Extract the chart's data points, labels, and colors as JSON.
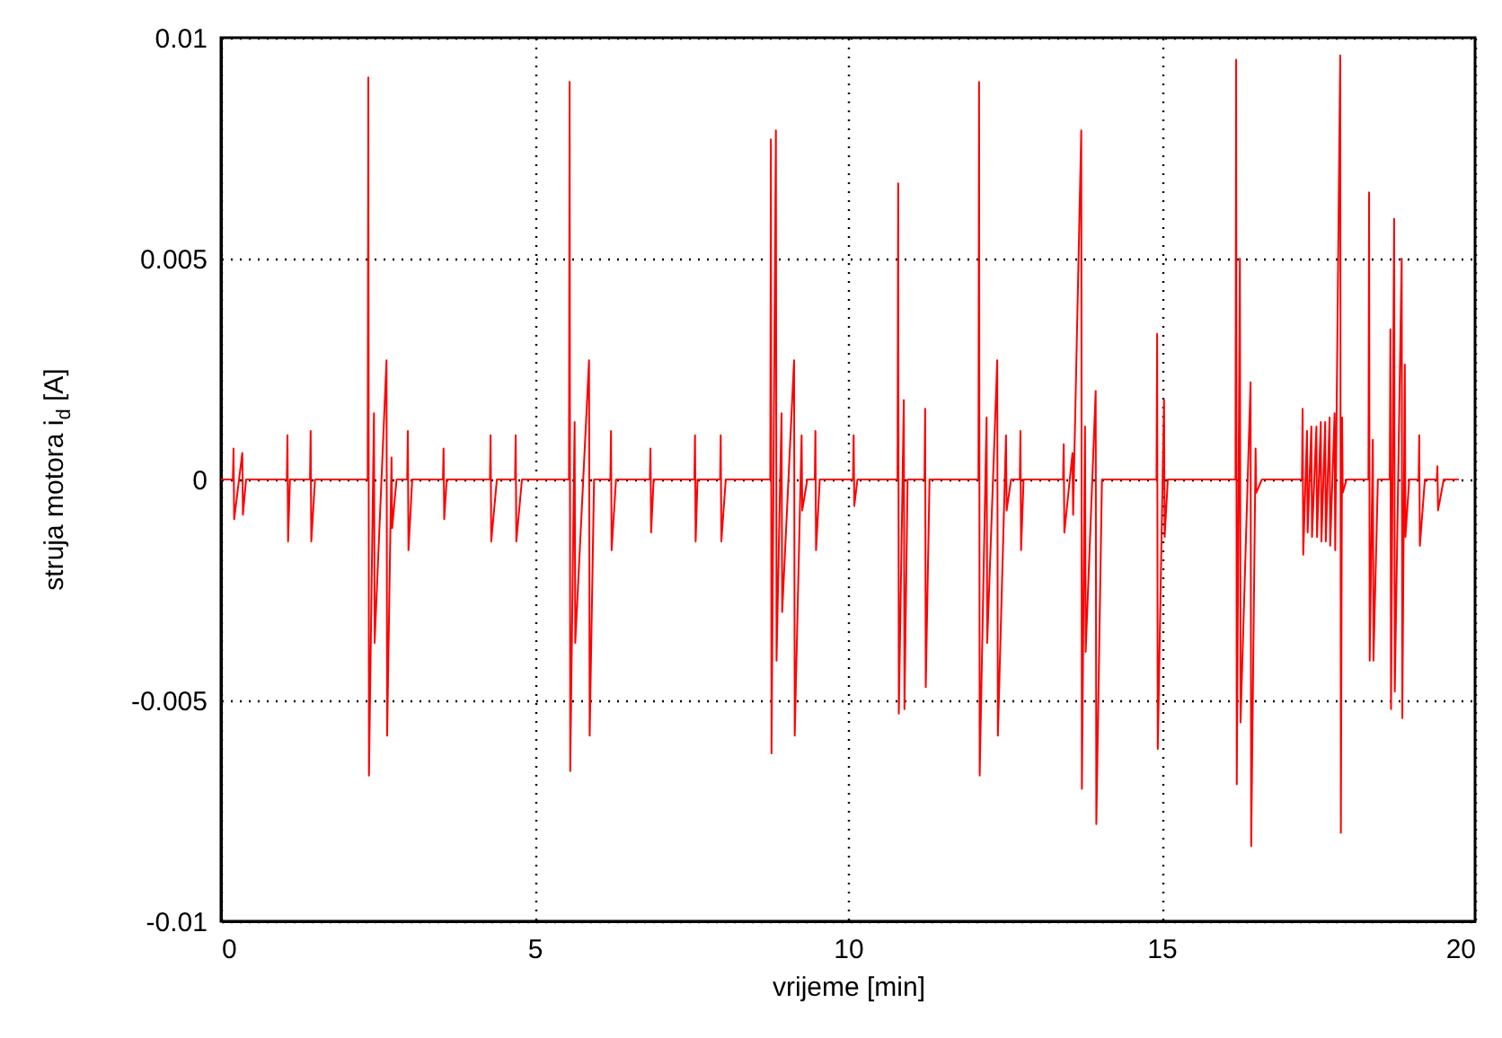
{
  "chart_data": {
    "type": "line",
    "xlabel": "vrijeme [min]",
    "ylabel": "struja motora i$_{d}$ [A]",
    "xlim": [
      0,
      20
    ],
    "xticks": [
      0,
      5,
      10,
      15,
      20
    ],
    "ylim": [
      -0.01,
      0.01
    ],
    "yticks": [
      -0.01,
      -0.005,
      0,
      0.005,
      0.01
    ],
    "grid": true,
    "line_style": "solid",
    "x": [
      0,
      0.19,
      0.2,
      0.21,
      0.34,
      0.35,
      0.4,
      1.05,
      1.06,
      1.07,
      1.1,
      1.42,
      1.43,
      1.44,
      1.5,
      2.34,
      2.35,
      2.36,
      2.44,
      2.45,
      2.64,
      2.65,
      2.72,
      2.73,
      2.8,
      2.97,
      2.98,
      2.99,
      3.05,
      3.54,
      3.55,
      3.56,
      3.6,
      4.29,
      4.3,
      4.31,
      4.4,
      4.69,
      4.7,
      4.71,
      4.8,
      5.55,
      5.56,
      5.57,
      5.64,
      5.65,
      5.87,
      5.88,
      5.95,
      6.21,
      6.22,
      6.23,
      6.3,
      6.84,
      6.85,
      6.86,
      6.9,
      7.55,
      7.56,
      7.57,
      7.6,
      7.96,
      7.97,
      7.98,
      8.05,
      8.76,
      8.77,
      8.78,
      8.85,
      8.86,
      8.94,
      8.95,
      9.14,
      9.15,
      9.26,
      9.27,
      9.35,
      9.47,
      9.48,
      9.49,
      9.55,
      10.08,
      10.09,
      10.1,
      10.15,
      10.79,
      10.8,
      10.81,
      10.89,
      10.9,
      10.95,
      11.22,
      11.23,
      11.24,
      11.3,
      12.08,
      12.09,
      12.1,
      12.21,
      12.22,
      12.38,
      12.39,
      12.52,
      12.53,
      12.6,
      12.74,
      12.75,
      12.76,
      12.8,
      13.43,
      13.44,
      13.45,
      13.58,
      13.59,
      13.72,
      13.73,
      13.78,
      13.79,
      13.95,
      13.96,
      14.05,
      14.92,
      14.93,
      14.94,
      15.04,
      15.05,
      15.1,
      16.18,
      16.19,
      16.2,
      16.25,
      16.26,
      16.42,
      16.43,
      16.5,
      16.51,
      16.6,
      17.24,
      17.25,
      17.26,
      17.32,
      17.33,
      17.39,
      17.4,
      17.47,
      17.48,
      17.54,
      17.55,
      17.61,
      17.62,
      17.68,
      17.69,
      17.76,
      17.77,
      17.85,
      17.86,
      17.88,
      17.89,
      17.95,
      18.3,
      18.31,
      18.32,
      18.37,
      18.38,
      18.45,
      18.64,
      18.65,
      18.66,
      18.71,
      18.72,
      18.83,
      18.84,
      18.88,
      18.89,
      18.95,
      19.1,
      19.11,
      19.12,
      19.2,
      19.39,
      19.4,
      19.41,
      19.5,
      19.74
    ],
    "series": [
      {
        "color": "#ff0000",
        "values": [
          0,
          0,
          0.0007,
          -0.0009,
          0.0006,
          -0.0008,
          0,
          0,
          0.001,
          -0.0014,
          0,
          0,
          0.0011,
          -0.0014,
          0,
          0,
          0.0091,
          -0.0067,
          0.0015,
          -0.0037,
          0.0027,
          -0.0058,
          0.0005,
          -0.0011,
          0,
          0,
          0.0011,
          -0.0016,
          0,
          0,
          0.0007,
          -0.0009,
          0,
          0,
          0.001,
          -0.0014,
          0,
          0,
          0.001,
          -0.0014,
          0,
          0,
          0.009,
          -0.0066,
          0.0013,
          -0.0037,
          0.0027,
          -0.0058,
          0,
          0,
          0.0011,
          -0.0016,
          0,
          0,
          0.0007,
          -0.0012,
          0,
          0,
          0.001,
          -0.0014,
          0,
          0,
          0.001,
          -0.0014,
          0,
          0,
          0.0077,
          -0.0062,
          0.0079,
          -0.0041,
          0.0015,
          -0.003,
          0.0027,
          -0.0058,
          0.001,
          -0.0007,
          0,
          0,
          0.0011,
          -0.0016,
          0,
          0,
          0.001,
          -0.0006,
          0,
          0,
          0.0067,
          -0.0053,
          0.0018,
          -0.0052,
          0,
          0,
          0.0016,
          -0.0047,
          0,
          0,
          0.009,
          -0.0067,
          0.0014,
          -0.0037,
          0.0027,
          -0.0058,
          0.001,
          -0.0007,
          0,
          0,
          0.0011,
          -0.0016,
          0,
          0,
          0.0008,
          -0.0012,
          0.0006,
          -0.0008,
          0.0079,
          -0.007,
          0.0012,
          -0.0039,
          0.002,
          -0.0078,
          0,
          0,
          0.0033,
          -0.0061,
          0.0018,
          -0.0013,
          0,
          0,
          0.0095,
          -0.0069,
          0.005,
          -0.0055,
          0.0022,
          -0.0083,
          0.0007,
          -0.0003,
          0,
          0,
          0.0016,
          -0.0017,
          0.0011,
          -0.0012,
          0.0012,
          -0.0013,
          0.0012,
          -0.0013,
          0.0013,
          -0.0014,
          0.0013,
          -0.0014,
          0.0014,
          -0.0015,
          0.0015,
          -0.0016,
          0.0096,
          -0.008,
          0.0014,
          -0.0003,
          0,
          0,
          0.0065,
          -0.0041,
          0.0009,
          -0.0041,
          0,
          0,
          0.0034,
          -0.0052,
          0.0059,
          -0.0048,
          0.005,
          -0.0054,
          0.0026,
          -0.0013,
          0,
          0,
          0.001,
          -0.0015,
          0,
          0,
          0.0003,
          -0.0007,
          0,
          0
        ]
      }
    ]
  }
}
